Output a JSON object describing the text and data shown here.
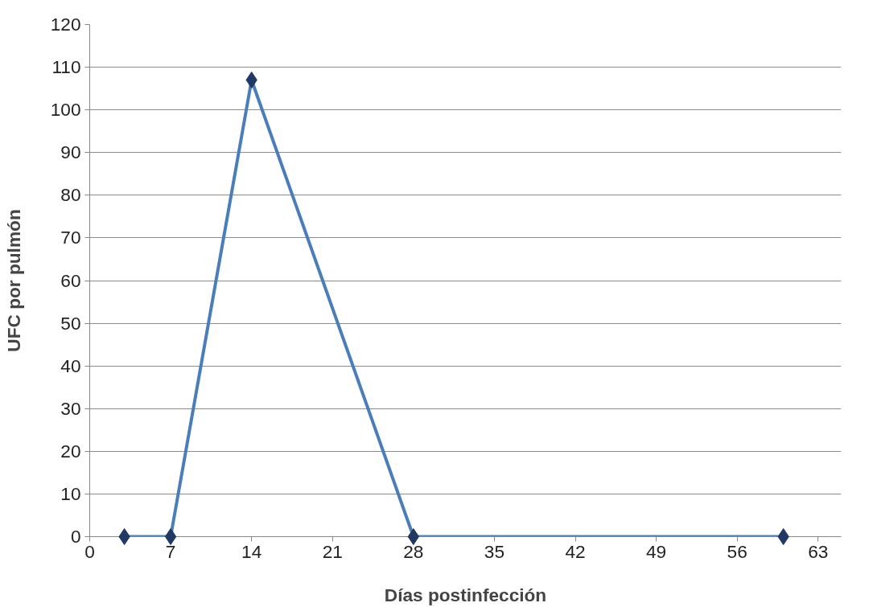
{
  "chart_data": {
    "type": "line",
    "xlabel": "Días postinfección",
    "ylabel": "UFC por pulmón",
    "x": [
      3,
      7,
      14,
      28,
      60
    ],
    "series": [
      {
        "color": "#4a7ebb",
        "marker": "none",
        "values": [
          0,
          0,
          107,
          0,
          0
        ]
      },
      {
        "type": "scatter",
        "color": "#1f3864",
        "values": [
          0,
          0,
          107,
          0,
          0
        ]
      }
    ],
    "marker": "diamond",
    "line_style": "solid",
    "xlim": [
      0,
      65
    ],
    "ylim": [
      0,
      120
    ],
    "xticks": [
      0,
      7,
      14,
      21,
      28,
      35,
      42,
      49,
      56,
      63
    ],
    "yticks": [
      0,
      10,
      20,
      30,
      40,
      50,
      60,
      70,
      80,
      90,
      100,
      110,
      120
    ],
    "grid": "y"
  }
}
